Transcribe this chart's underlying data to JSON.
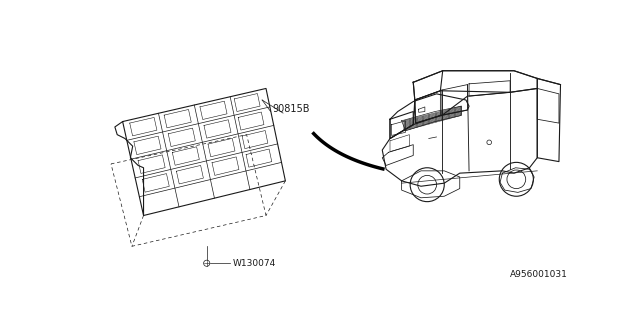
{
  "background_color": "#ffffff",
  "part_label": "90815B",
  "fastener_label": "W130074",
  "ref_number": "A956001031",
  "fig_width": 6.4,
  "fig_height": 3.2,
  "dpi": 100,
  "line_color": "#1a1a1a",
  "line_color_light": "#555555"
}
